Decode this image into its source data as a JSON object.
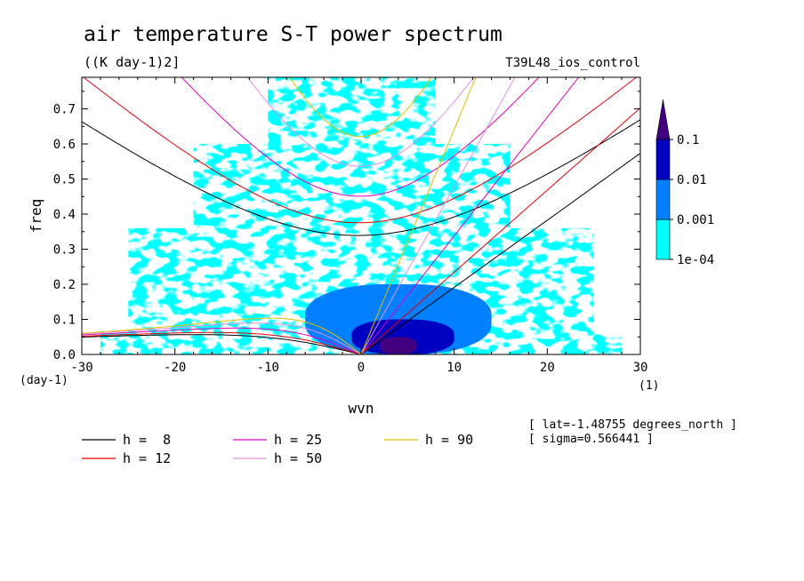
{
  "chart_data": {
    "type": "heatmap",
    "title": "air temperature S-T power spectrum",
    "units": "((K day-1)2]",
    "experiment": "T39L48_ios_control",
    "xlabel": "wvn",
    "ylabel": "freq",
    "x_unit": "(1)",
    "y_unit": "(day-1)",
    "xlim": [
      -30,
      30
    ],
    "ylim": [
      0,
      0.79
    ],
    "x_ticks": [
      -30,
      -20,
      -10,
      0,
      10,
      20,
      30
    ],
    "x_tick_labels": [
      "-30",
      "-20",
      "-10",
      "0",
      "10",
      "20",
      "30"
    ],
    "y_ticks": [
      0,
      0.1,
      0.2,
      0.3,
      0.4,
      0.5,
      0.6,
      0.7
    ],
    "y_tick_labels": [
      "0.0",
      "0.1",
      "0.2",
      "0.3",
      "0.4",
      "0.5",
      "0.6",
      "0.7"
    ],
    "colorbar": {
      "levels": [
        "1e-04",
        "0.001",
        "0.01",
        "0.1"
      ],
      "colors": [
        "#00ffff",
        "#0080ff",
        "#0000c0",
        "#400080"
      ]
    },
    "power_regions": [
      {
        "level": 0,
        "x": [
          -28,
          28
        ],
        "y": [
          0.0,
          0.06
        ]
      },
      {
        "level": 0,
        "x": [
          -25,
          25
        ],
        "y": [
          0.06,
          0.36
        ]
      },
      {
        "level": 0,
        "x": [
          -18,
          16
        ],
        "y": [
          0.36,
          0.6
        ]
      },
      {
        "level": 0,
        "x": [
          -10,
          8
        ],
        "y": [
          0.6,
          0.79
        ]
      },
      {
        "level": 1,
        "x": [
          -6,
          14
        ],
        "y": [
          0.0,
          0.2
        ]
      },
      {
        "level": 2,
        "x": [
          -1,
          10
        ],
        "y": [
          0.0,
          0.1
        ]
      },
      {
        "level": 3,
        "x": [
          2,
          6
        ],
        "y": [
          0.0,
          0.05
        ]
      }
    ],
    "dispersion_curves": [
      {
        "h": 8,
        "label": "h =  8",
        "color": "#000000"
      },
      {
        "h": 12,
        "label": "h = 12",
        "color": "#e00000"
      },
      {
        "h": 25,
        "label": "h = 25",
        "color": "#e000c0"
      },
      {
        "h": 50,
        "label": "h = 50",
        "color": "#e090e0"
      },
      {
        "h": 90,
        "label": "h = 90",
        "color": "#e0c000"
      }
    ],
    "annotations": [
      "[ lat=-1.48755 degrees_north ]",
      "[ sigma=0.566441 ]"
    ]
  }
}
